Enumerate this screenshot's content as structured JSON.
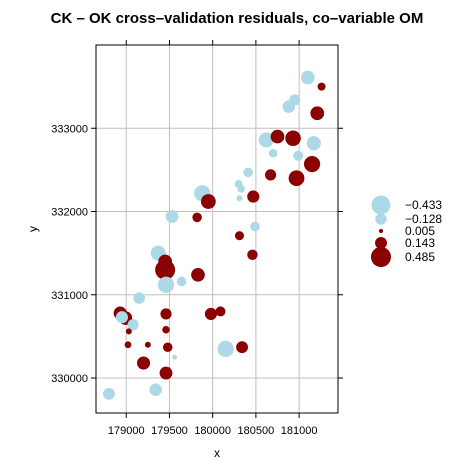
{
  "chart_data": {
    "type": "scatter",
    "title": "CK – OK cross–validation residuals, co–variable OM",
    "xlabel": "x",
    "ylabel": "y",
    "xlim": [
      178650,
      181450
    ],
    "ylim": [
      329580,
      334000
    ],
    "xticks": [
      179000,
      179500,
      180000,
      180500,
      181000
    ],
    "xtick_labels": [
      "179000",
      "179500",
      "180000",
      "180500",
      "181000"
    ],
    "yticks": [
      330000,
      331000,
      332000,
      333000
    ],
    "ytick_labels": [
      "330000",
      "331000",
      "332000",
      "333000"
    ],
    "grid": true,
    "legend_position": "right",
    "colors": {
      "negative": "#add8e6",
      "positive": "#8b0000",
      "grid": "#bfbfbf",
      "frame": "#000000"
    },
    "legend": [
      {
        "label": "−0.433",
        "value": -0.433
      },
      {
        "label": "−0.128",
        "value": -0.128
      },
      {
        "label": "0.005",
        "value": 0.005
      },
      {
        "label": "0.143",
        "value": 0.143
      },
      {
        "label": "0.485",
        "value": 0.485
      }
    ],
    "points": [
      {
        "x": 181100,
        "y": 333610,
        "value": -0.2
      },
      {
        "x": 181260,
        "y": 333500,
        "value": 0.05
      },
      {
        "x": 180950,
        "y": 333340,
        "value": -0.12
      },
      {
        "x": 180880,
        "y": 333260,
        "value": -0.16
      },
      {
        "x": 181210,
        "y": 333180,
        "value": 0.2
      },
      {
        "x": 180750,
        "y": 332900,
        "value": 0.2
      },
      {
        "x": 180620,
        "y": 332860,
        "value": -0.25
      },
      {
        "x": 180930,
        "y": 332880,
        "value": 0.27
      },
      {
        "x": 181170,
        "y": 332820,
        "value": -0.22
      },
      {
        "x": 180700,
        "y": 332700,
        "value": -0.06
      },
      {
        "x": 180990,
        "y": 332670,
        "value": -0.09
      },
      {
        "x": 181150,
        "y": 332570,
        "value": 0.3
      },
      {
        "x": 180410,
        "y": 332470,
        "value": -0.08
      },
      {
        "x": 180670,
        "y": 332440,
        "value": 0.12
      },
      {
        "x": 180970,
        "y": 332400,
        "value": 0.28
      },
      {
        "x": 180300,
        "y": 332330,
        "value": -0.05
      },
      {
        "x": 180330,
        "y": 332270,
        "value": -0.04
      },
      {
        "x": 179880,
        "y": 332220,
        "value": -0.3
      },
      {
        "x": 180470,
        "y": 332180,
        "value": 0.15
      },
      {
        "x": 180310,
        "y": 332160,
        "value": -0.02
      },
      {
        "x": 179950,
        "y": 332120,
        "value": 0.24
      },
      {
        "x": 179530,
        "y": 331940,
        "value": -0.17
      },
      {
        "x": 179820,
        "y": 331930,
        "value": 0.08
      },
      {
        "x": 180490,
        "y": 331820,
        "value": -0.08
      },
      {
        "x": 180310,
        "y": 331710,
        "value": 0.07
      },
      {
        "x": 179370,
        "y": 331500,
        "value": -0.25
      },
      {
        "x": 180460,
        "y": 331480,
        "value": 0.1
      },
      {
        "x": 179450,
        "y": 331400,
        "value": 0.2
      },
      {
        "x": 179450,
        "y": 331300,
        "value": 0.485
      },
      {
        "x": 179640,
        "y": 331160,
        "value": -0.08
      },
      {
        "x": 179830,
        "y": 331240,
        "value": 0.2
      },
      {
        "x": 179460,
        "y": 331120,
        "value": -0.3
      },
      {
        "x": 179150,
        "y": 330960,
        "value": -0.13
      },
      {
        "x": 178930,
        "y": 330780,
        "value": 0.18
      },
      {
        "x": 179460,
        "y": 330770,
        "value": 0.12
      },
      {
        "x": 179980,
        "y": 330770,
        "value": 0.15
      },
      {
        "x": 180090,
        "y": 330800,
        "value": 0.09
      },
      {
        "x": 178990,
        "y": 330720,
        "value": 0.2
      },
      {
        "x": 178950,
        "y": 330730,
        "value": -0.15
      },
      {
        "x": 179080,
        "y": 330640,
        "value": -0.12
      },
      {
        "x": 179030,
        "y": 330560,
        "value": 0.02
      },
      {
        "x": 179460,
        "y": 330580,
        "value": 0.04
      },
      {
        "x": 179020,
        "y": 330400,
        "value": 0.03
      },
      {
        "x": 179250,
        "y": 330400,
        "value": 0.02
      },
      {
        "x": 179480,
        "y": 330370,
        "value": 0.08
      },
      {
        "x": 180150,
        "y": 330350,
        "value": -0.3
      },
      {
        "x": 180340,
        "y": 330370,
        "value": 0.14
      },
      {
        "x": 179560,
        "y": 330250,
        "value": -0.01
      },
      {
        "x": 179200,
        "y": 330180,
        "value": 0.18
      },
      {
        "x": 179460,
        "y": 330060,
        "value": 0.17
      },
      {
        "x": 179340,
        "y": 329860,
        "value": -0.16
      },
      {
        "x": 178800,
        "y": 329810,
        "value": -0.14
      }
    ]
  }
}
